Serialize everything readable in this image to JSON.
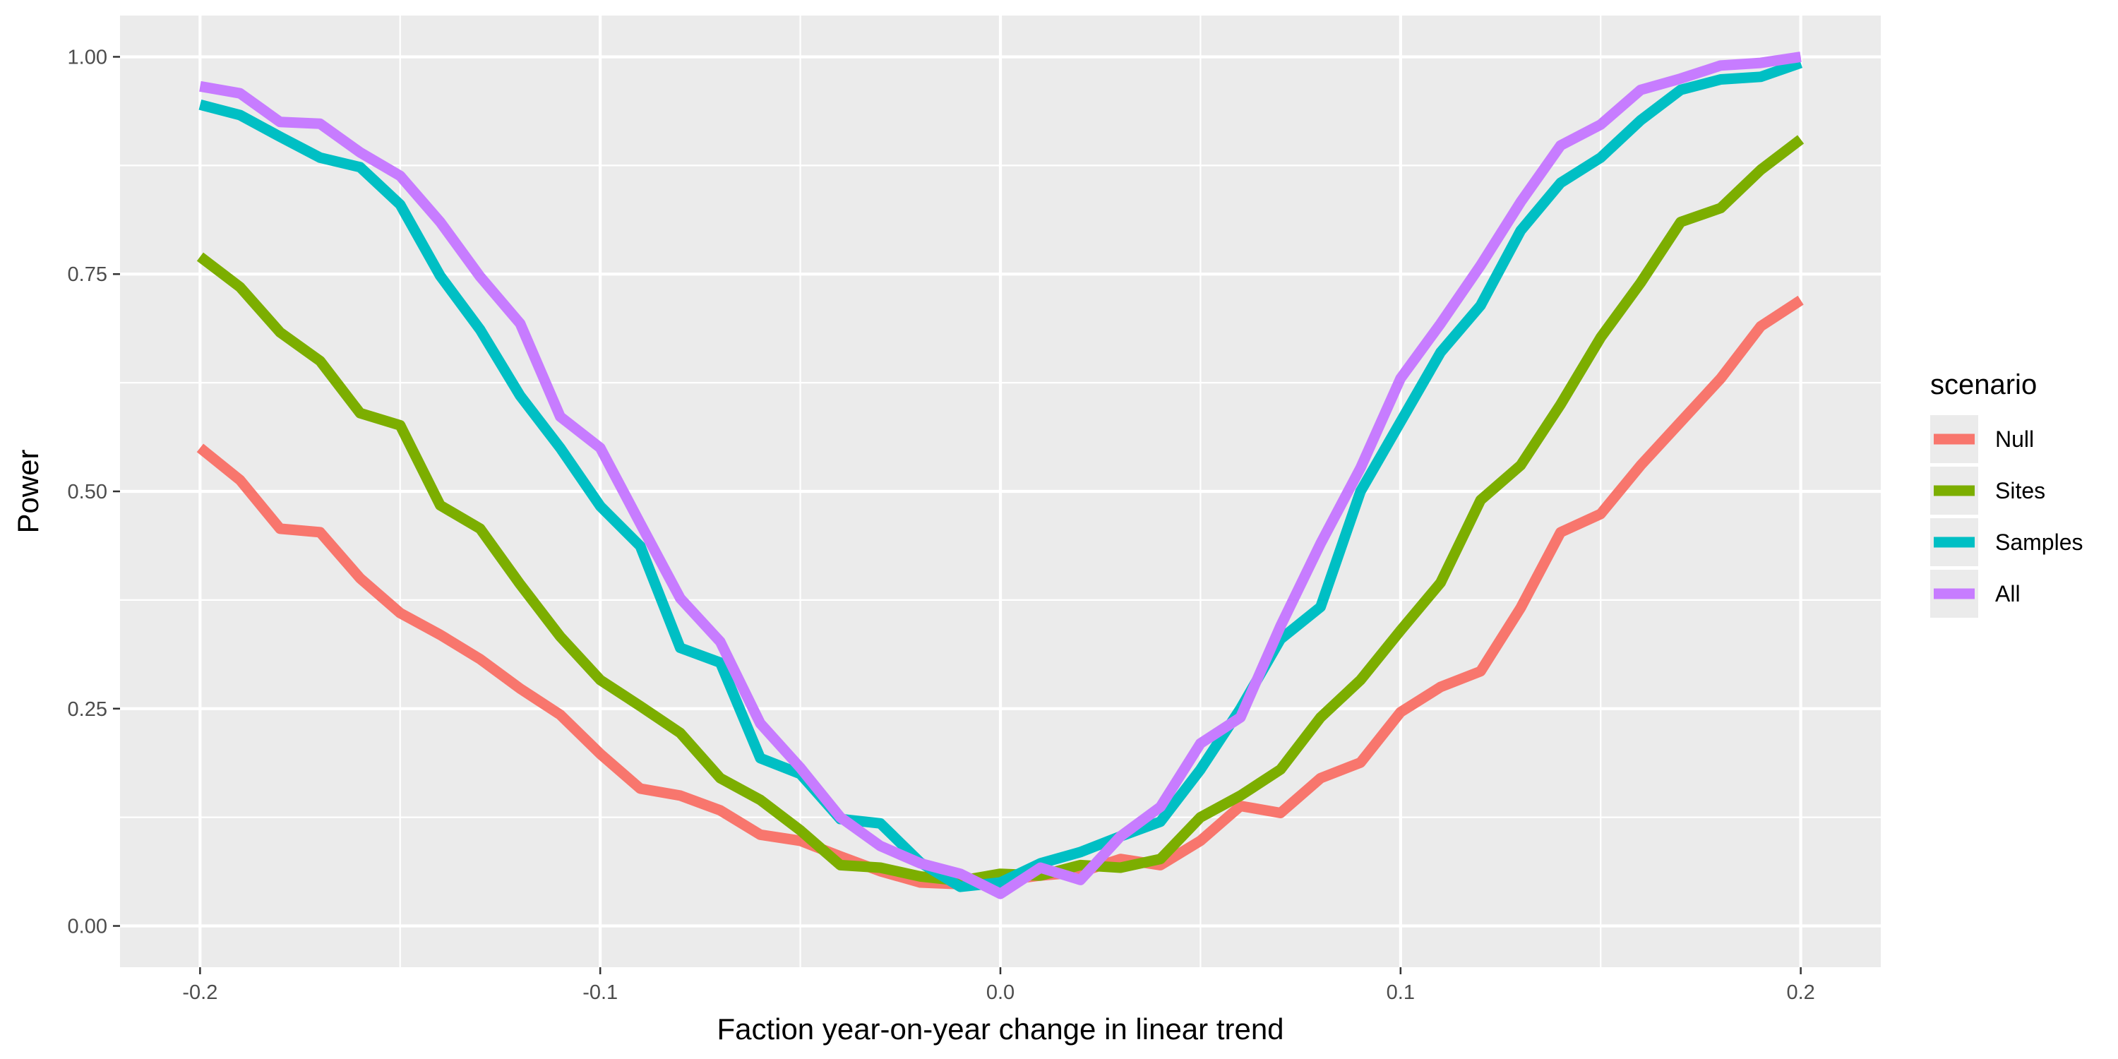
{
  "chart_data": {
    "type": "line",
    "title": "",
    "xlabel": "Faction year-on-year change in linear trend",
    "ylabel": "Power",
    "xlim": [
      -0.22,
      0.22
    ],
    "ylim": [
      -0.0475,
      1.0475
    ],
    "x_ticks": [
      -0.2,
      -0.1,
      0.0,
      0.1,
      0.2
    ],
    "x_tick_labels": [
      "-0.2",
      "-0.1",
      "0.0",
      "0.1",
      "0.2"
    ],
    "y_ticks": [
      0.0,
      0.25,
      0.5,
      0.75,
      1.0
    ],
    "y_tick_labels": [
      "0.00",
      "0.25",
      "0.50",
      "0.75",
      "1.00"
    ],
    "grid": true,
    "panel_background": "#ebebeb",
    "legend": {
      "title": "scenario",
      "position": "right"
    },
    "x": [
      -0.2,
      -0.19,
      -0.18,
      -0.17,
      -0.16,
      -0.15,
      -0.14,
      -0.13,
      -0.12,
      -0.11,
      -0.1,
      -0.09,
      -0.08,
      -0.07,
      -0.06,
      -0.05,
      -0.04,
      -0.03,
      -0.02,
      -0.01,
      0.0,
      0.01,
      0.02,
      0.03,
      0.04,
      0.05,
      0.06,
      0.07,
      0.08,
      0.09,
      0.1,
      0.11,
      0.12,
      0.13,
      0.14,
      0.15,
      0.16,
      0.17,
      0.18,
      0.19,
      0.2
    ],
    "series": [
      {
        "name": "Null",
        "color": "#F8766D",
        "values": [
          0.55,
          0.513,
          0.457,
          0.453,
          0.4,
          0.36,
          0.335,
          0.307,
          0.273,
          0.243,
          0.198,
          0.158,
          0.15,
          0.133,
          0.105,
          0.098,
          0.08,
          0.063,
          0.05,
          0.048,
          0.052,
          0.058,
          0.062,
          0.077,
          0.07,
          0.098,
          0.138,
          0.13,
          0.17,
          0.188,
          0.246,
          0.275,
          0.293,
          0.366,
          0.453,
          0.474,
          0.53,
          0.58,
          0.63,
          0.69,
          0.72
        ]
      },
      {
        "name": "Sites",
        "color": "#7CAE00",
        "values": [
          0.77,
          0.735,
          0.683,
          0.65,
          0.59,
          0.576,
          0.484,
          0.457,
          0.393,
          0.333,
          0.283,
          0.253,
          0.222,
          0.17,
          0.145,
          0.11,
          0.07,
          0.067,
          0.057,
          0.052,
          0.06,
          0.058,
          0.07,
          0.067,
          0.077,
          0.125,
          0.15,
          0.18,
          0.24,
          0.283,
          0.34,
          0.395,
          0.49,
          0.53,
          0.6,
          0.677,
          0.74,
          0.81,
          0.826,
          0.87,
          0.905
        ]
      },
      {
        "name": "Samples",
        "color": "#00BFC4",
        "values": [
          0.945,
          0.933,
          0.908,
          0.884,
          0.873,
          0.83,
          0.748,
          0.686,
          0.61,
          0.55,
          0.483,
          0.437,
          0.32,
          0.303,
          0.193,
          0.175,
          0.123,
          0.118,
          0.073,
          0.045,
          0.05,
          0.072,
          0.085,
          0.103,
          0.12,
          0.18,
          0.25,
          0.33,
          0.367,
          0.5,
          0.58,
          0.66,
          0.714,
          0.8,
          0.855,
          0.884,
          0.927,
          0.962,
          0.974,
          0.977,
          0.993
        ]
      },
      {
        "name": "All",
        "color": "#C77CFF",
        "values": [
          0.966,
          0.958,
          0.925,
          0.923,
          0.89,
          0.863,
          0.81,
          0.747,
          0.693,
          0.586,
          0.55,
          0.463,
          0.377,
          0.327,
          0.233,
          0.182,
          0.125,
          0.092,
          0.072,
          0.06,
          0.037,
          0.067,
          0.053,
          0.103,
          0.137,
          0.21,
          0.24,
          0.345,
          0.44,
          0.527,
          0.63,
          0.693,
          0.76,
          0.833,
          0.898,
          0.922,
          0.962,
          0.975,
          0.99,
          0.993,
          1.0
        ]
      }
    ]
  }
}
